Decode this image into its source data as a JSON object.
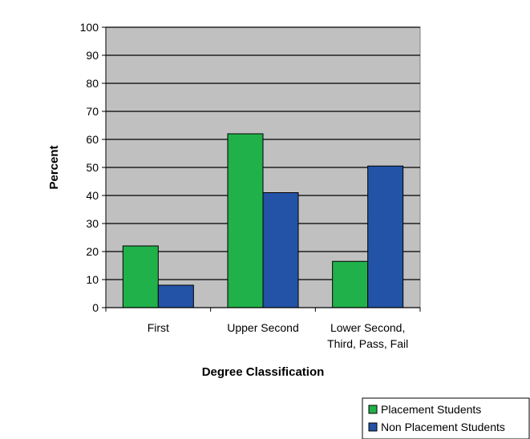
{
  "chart_data": {
    "type": "bar",
    "categories": [
      [
        "First"
      ],
      [
        "Upper Second"
      ],
      [
        "Lower Second,",
        "Third, Pass, Fail"
      ]
    ],
    "series": [
      {
        "name": "Placement Students",
        "values": [
          22,
          62,
          16.5
        ],
        "color": "#21b14a"
      },
      {
        "name": "Non Placement Students",
        "values": [
          8,
          41,
          50.5
        ],
        "color": "#2353a7"
      }
    ],
    "title": "",
    "xlabel": "Degree Classification",
    "ylabel": "Percent",
    "ylim": [
      0,
      100
    ],
    "yticks": [
      0,
      10,
      20,
      30,
      40,
      50,
      60,
      70,
      80,
      90,
      100
    ],
    "grid": true,
    "plot_background": "#c0c0c0",
    "legend_position": "bottom-right"
  }
}
